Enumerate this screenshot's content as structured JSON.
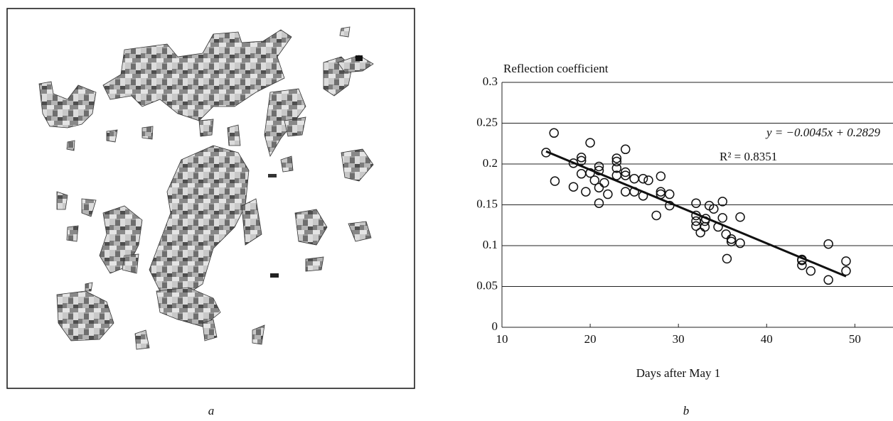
{
  "panel_labels": [
    "a",
    "b"
  ],
  "chart_data": {
    "type": "scatter",
    "title": "Reflection coefficient",
    "x_label": "Days after May 1",
    "annotations": [
      "y = −0.0045x + 0.2829",
      "R² = 0.8351"
    ],
    "x": [
      15,
      15.9,
      16,
      18.1,
      18.1,
      19,
      19,
      19,
      19.5,
      20,
      20,
      20.5,
      21,
      21,
      21,
      21,
      21.6,
      22,
      23,
      23,
      23,
      23,
      24,
      24,
      24,
      24,
      25,
      25,
      26,
      26.6,
      26,
      27.5,
      28,
      28,
      28,
      29,
      29,
      32,
      32,
      32,
      32,
      32.5,
      33,
      33,
      33.1,
      33.5,
      34,
      34.5,
      35,
      35,
      35.4,
      35.5,
      36,
      36,
      37,
      37,
      44,
      44,
      44,
      45,
      47,
      47,
      49,
      49
    ],
    "values": [
      0.214,
      0.238,
      0.179,
      0.201,
      0.172,
      0.208,
      0.204,
      0.188,
      0.166,
      0.226,
      0.189,
      0.18,
      0.197,
      0.192,
      0.171,
      0.152,
      0.177,
      0.163,
      0.207,
      0.203,
      0.195,
      0.186,
      0.218,
      0.19,
      0.186,
      0.166,
      0.182,
      0.166,
      0.182,
      0.18,
      0.161,
      0.137,
      0.185,
      0.166,
      0.163,
      0.163,
      0.149,
      0.152,
      0.137,
      0.13,
      0.124,
      0.116,
      0.13,
      0.123,
      0.133,
      0.149,
      0.145,
      0.123,
      0.154,
      0.134,
      0.114,
      0.084,
      0.108,
      0.105,
      0.135,
      0.103,
      0.083,
      0.082,
      0.076,
      0.069,
      0.102,
      0.058,
      0.081,
      0.069
    ],
    "trendline": {
      "slope": -0.0045,
      "intercept": 0.2829,
      "x": [
        15,
        49
      ]
    },
    "xlim": [
      10,
      54
    ],
    "xticks": [
      10,
      20,
      30,
      40,
      50
    ],
    "ylim": [
      0,
      0.3
    ],
    "yticks": [
      0,
      0.05,
      0.1,
      0.15,
      0.2,
      0.25,
      0.3
    ],
    "grid": true,
    "marker_color": "#111"
  }
}
